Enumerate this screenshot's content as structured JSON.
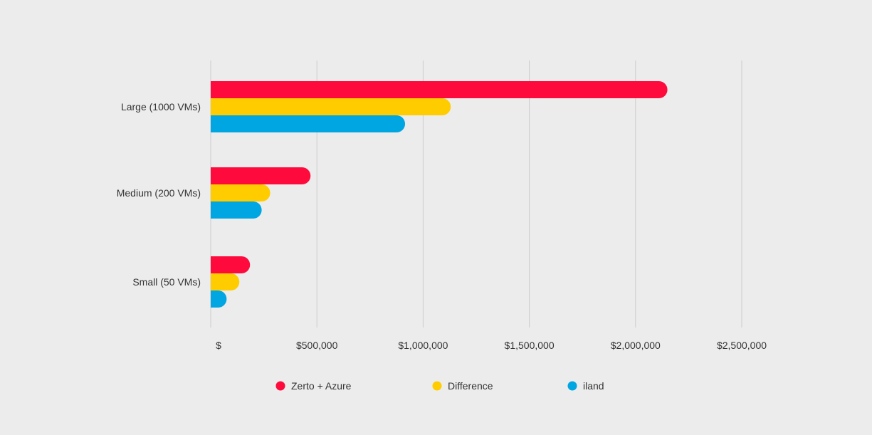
{
  "chart_data": {
    "type": "bar",
    "orientation": "horizontal",
    "categories": [
      "Large (1000 VMs)",
      "Medium (200 VMs)",
      "Small (50 VMs)"
    ],
    "series": [
      {
        "name": "Zerto + Azure",
        "color": "#ff0a3c",
        "values": [
          2150000,
          470000,
          185000
        ]
      },
      {
        "name": "Difference",
        "color": "#ffcc00",
        "values": [
          1130000,
          280000,
          135000
        ]
      },
      {
        "name": "iland",
        "color": "#00a6e2",
        "values": [
          915000,
          240000,
          75000
        ]
      }
    ],
    "x_ticks": [
      {
        "value": 0,
        "label": "$"
      },
      {
        "value": 500000,
        "label": "$500,000"
      },
      {
        "value": 1000000,
        "label": "$1,000,000"
      },
      {
        "value": 1500000,
        "label": "$1,500,000"
      },
      {
        "value": 2000000,
        "label": "$2,000,000"
      },
      {
        "value": 2500000,
        "label": "$2,500,000"
      }
    ],
    "xlim": [
      0,
      2500000
    ],
    "title": "",
    "xlabel": "",
    "ylabel": "",
    "grid": true,
    "legend_position": "bottom"
  },
  "colors": {
    "background": "#ececec",
    "gridline": "#cccccc",
    "text": "#333333"
  }
}
